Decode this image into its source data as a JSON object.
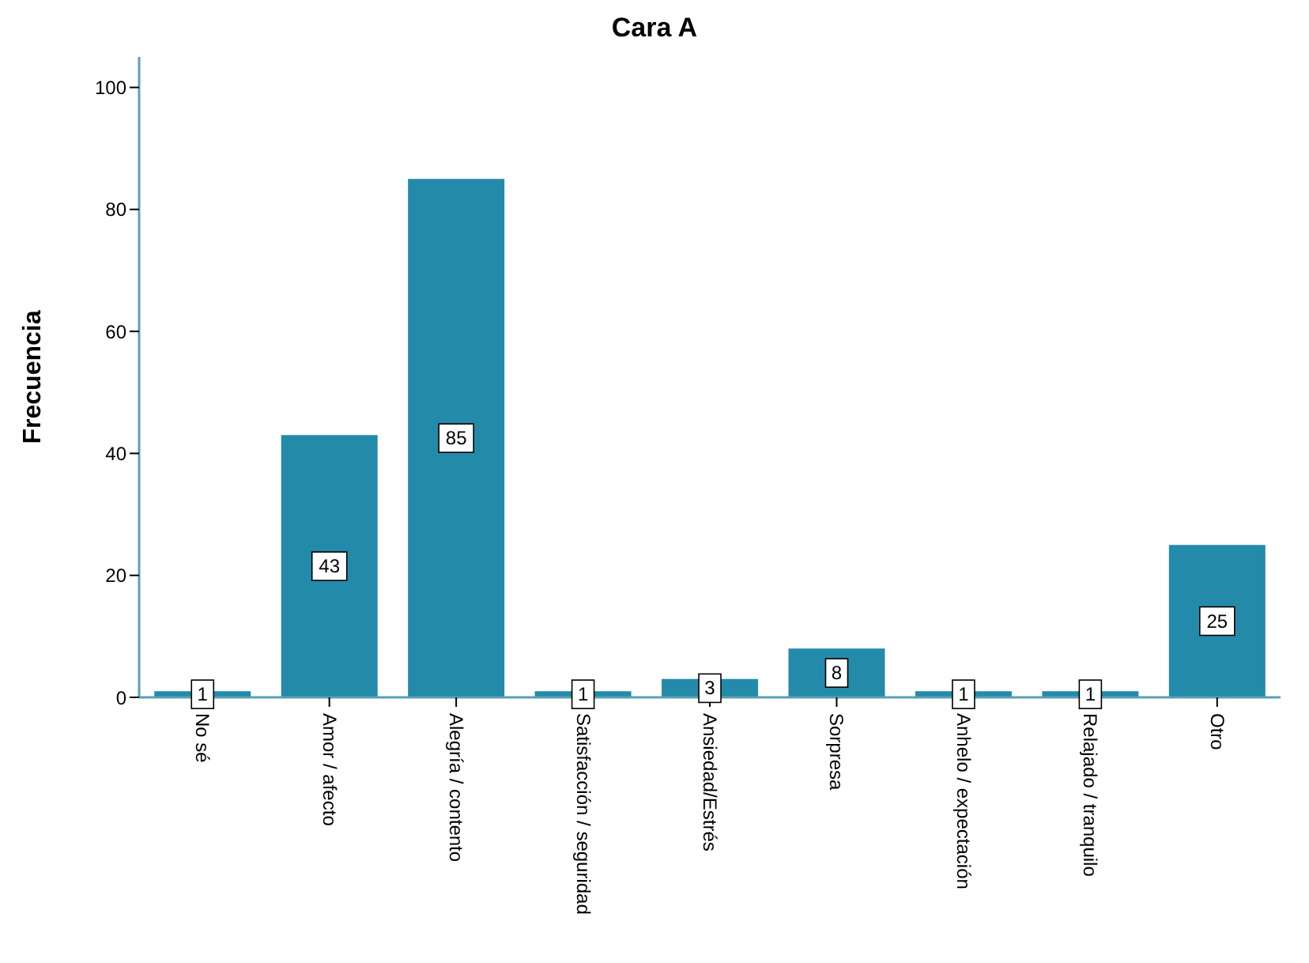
{
  "chart_data": {
    "type": "bar",
    "title": "Cara A",
    "ylabel": "Frecuencia",
    "categories": [
      "No sé",
      "Amor / afecto",
      "Alegría / contento",
      "Satisfacción / seguridad",
      "Ansiedad/Estrés",
      "Sorpresa",
      "Anhelo / expectación",
      "Relajado / tranquilo",
      "Otro"
    ],
    "values": [
      1,
      43,
      85,
      1,
      3,
      8,
      1,
      1,
      25
    ],
    "color": "#248aaa",
    "ylim": [
      0,
      105
    ],
    "yticks": [
      0,
      20,
      40,
      60,
      80,
      100
    ],
    "data_labels": true
  }
}
